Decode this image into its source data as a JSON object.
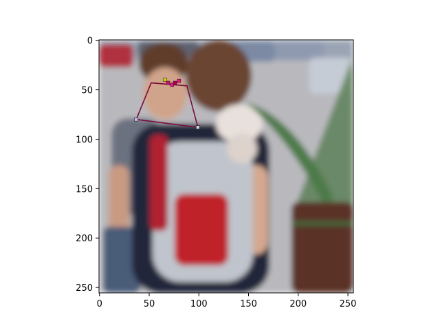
{
  "chart_data": {
    "type": "image",
    "xlim": [
      0,
      255
    ],
    "ylim": [
      255,
      0
    ],
    "x_ticks": [
      0,
      50,
      100,
      150,
      200,
      250
    ],
    "y_ticks": [
      0,
      50,
      100,
      150,
      200,
      250
    ],
    "x_tick_labels": [
      "0",
      "50",
      "100",
      "150",
      "200",
      "250"
    ],
    "y_tick_labels": [
      "0",
      "50",
      "100",
      "150",
      "200",
      "250"
    ],
    "grid": false,
    "polygon": {
      "color": "#7a0a3c",
      "points": [
        [
          37,
          80
        ],
        [
          52,
          43
        ],
        [
          88,
          46
        ],
        [
          99,
          88
        ]
      ]
    },
    "keypoints": [
      {
        "x": 66,
        "y": 40,
        "color": "#c8e000"
      },
      {
        "x": 69,
        "y": 43,
        "color": "#d0106a"
      },
      {
        "x": 73,
        "y": 45,
        "color": "#e0207a"
      },
      {
        "x": 80,
        "y": 41,
        "color": "#e81a78"
      },
      {
        "x": 76,
        "y": 43,
        "color": "#b00050"
      },
      {
        "x": 37,
        "y": 80,
        "color": "#b8c8e0"
      },
      {
        "x": 99,
        "y": 88,
        "color": "#c0d8d0"
      }
    ]
  },
  "photo_colors": {
    "sky_pavement": "#b8b8bc",
    "cars": "#8a98b0",
    "car_red": "#b03040",
    "hair": "#6a4430",
    "skin": "#d4a890",
    "shirt_dark": "#22283a",
    "shirt_grey": "#6c7180",
    "backpack_grey": "#c0c4cc",
    "backpack_red": "#c0202c",
    "dog_white": "#e8e0dc",
    "plant_green": "#3c6a40",
    "pot_brown": "#5a3028",
    "jeans": "#4a5c78"
  }
}
